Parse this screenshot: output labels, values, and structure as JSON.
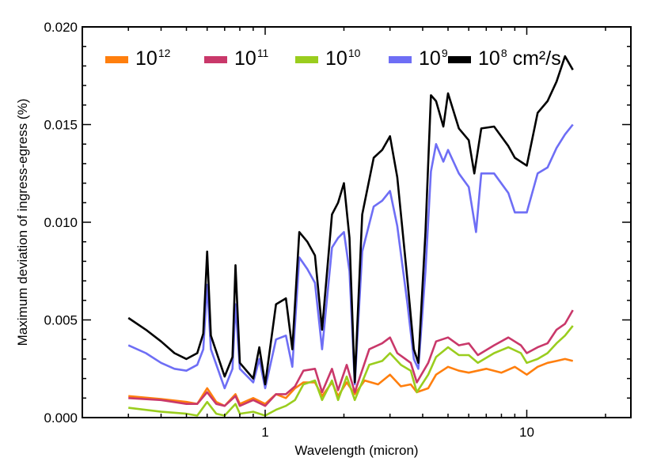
{
  "chart_data": {
    "type": "line",
    "xlabel": "Wavelength (micron)",
    "ylabel": "Maximum deviation of ingress-egress (%)",
    "xscale": "log",
    "xlim": [
      0.2,
      25
    ],
    "ylim": [
      0.0,
      0.02
    ],
    "x_ticks": [
      {
        "value": 1,
        "label": "1"
      },
      {
        "value": 10,
        "label": "10"
      }
    ],
    "y_ticks": [
      {
        "value": 0.0,
        "label": "0.000"
      },
      {
        "value": 0.005,
        "label": "0.005"
      },
      {
        "value": 0.01,
        "label": "0.010"
      },
      {
        "value": 0.015,
        "label": "0.015"
      },
      {
        "value": 0.02,
        "label": "0.020"
      }
    ],
    "legend_position": "top",
    "legend_unit": "cm²/s",
    "series": [
      {
        "name": "10^12",
        "base": "10",
        "exp": "12",
        "color": "#ff7f0e",
        "points": [
          [
            0.3,
            0.0011
          ],
          [
            0.4,
            0.00095
          ],
          [
            0.5,
            0.0008
          ],
          [
            0.55,
            0.0007
          ],
          [
            0.6,
            0.0015
          ],
          [
            0.65,
            0.0008
          ],
          [
            0.7,
            0.0006
          ],
          [
            0.77,
            0.0012
          ],
          [
            0.8,
            0.0007
          ],
          [
            0.9,
            0.001
          ],
          [
            1.0,
            0.0007
          ],
          [
            1.1,
            0.0012
          ],
          [
            1.2,
            0.001
          ],
          [
            1.3,
            0.0015
          ],
          [
            1.4,
            0.0018
          ],
          [
            1.55,
            0.0018
          ],
          [
            1.65,
            0.0011
          ],
          [
            1.8,
            0.0018
          ],
          [
            1.9,
            0.0011
          ],
          [
            2.05,
            0.0018
          ],
          [
            2.2,
            0.0012
          ],
          [
            2.4,
            0.0019
          ],
          [
            2.7,
            0.0017
          ],
          [
            3.0,
            0.0022
          ],
          [
            3.3,
            0.0016
          ],
          [
            3.6,
            0.0017
          ],
          [
            3.8,
            0.0013
          ],
          [
            4.2,
            0.0015
          ],
          [
            4.5,
            0.0022
          ],
          [
            5.0,
            0.0026
          ],
          [
            5.5,
            0.0024
          ],
          [
            6.0,
            0.0023
          ],
          [
            7.0,
            0.0025
          ],
          [
            8.0,
            0.0023
          ],
          [
            9.0,
            0.0026
          ],
          [
            10.0,
            0.0022
          ],
          [
            11.0,
            0.0026
          ],
          [
            12.0,
            0.0028
          ],
          [
            13.0,
            0.0029
          ],
          [
            14.0,
            0.003
          ],
          [
            15.0,
            0.0029
          ]
        ]
      },
      {
        "name": "10^11",
        "base": "10",
        "exp": "11",
        "color": "#c9386a",
        "points": [
          [
            0.3,
            0.001
          ],
          [
            0.4,
            0.0009
          ],
          [
            0.5,
            0.0007
          ],
          [
            0.55,
            0.0007
          ],
          [
            0.6,
            0.0013
          ],
          [
            0.65,
            0.0007
          ],
          [
            0.7,
            0.0006
          ],
          [
            0.77,
            0.0011
          ],
          [
            0.8,
            0.0006
          ],
          [
            0.9,
            0.0009
          ],
          [
            1.0,
            0.0006
          ],
          [
            1.1,
            0.0012
          ],
          [
            1.2,
            0.0012
          ],
          [
            1.3,
            0.0016
          ],
          [
            1.4,
            0.0024
          ],
          [
            1.55,
            0.0025
          ],
          [
            1.65,
            0.0013
          ],
          [
            1.8,
            0.0025
          ],
          [
            1.9,
            0.0014
          ],
          [
            2.05,
            0.0027
          ],
          [
            2.2,
            0.0013
          ],
          [
            2.5,
            0.0035
          ],
          [
            2.8,
            0.0038
          ],
          [
            3.0,
            0.0041
          ],
          [
            3.2,
            0.0033
          ],
          [
            3.6,
            0.0028
          ],
          [
            3.8,
            0.0018
          ],
          [
            4.2,
            0.0028
          ],
          [
            4.5,
            0.0039
          ],
          [
            5.0,
            0.0041
          ],
          [
            5.5,
            0.0037
          ],
          [
            6.0,
            0.0038
          ],
          [
            6.5,
            0.0032
          ],
          [
            7.5,
            0.0037
          ],
          [
            8.5,
            0.0041
          ],
          [
            9.5,
            0.0037
          ],
          [
            10.0,
            0.0033
          ],
          [
            11.0,
            0.0036
          ],
          [
            12.0,
            0.0038
          ],
          [
            13.0,
            0.0045
          ],
          [
            14.0,
            0.0048
          ],
          [
            15.0,
            0.0055
          ]
        ]
      },
      {
        "name": "10^10",
        "base": "10",
        "exp": "10",
        "color": "#9acd1e",
        "points": [
          [
            0.3,
            0.0005
          ],
          [
            0.4,
            0.0003
          ],
          [
            0.5,
            0.0002
          ],
          [
            0.55,
            0.0001
          ],
          [
            0.6,
            0.0008
          ],
          [
            0.65,
            0.0002
          ],
          [
            0.7,
            0.0001
          ],
          [
            0.77,
            0.0007
          ],
          [
            0.8,
            0.0002
          ],
          [
            0.9,
            0.0003
          ],
          [
            1.0,
            0.0001
          ],
          [
            1.1,
            0.0004
          ],
          [
            1.2,
            0.0006
          ],
          [
            1.3,
            0.0009
          ],
          [
            1.4,
            0.0017
          ],
          [
            1.55,
            0.0019
          ],
          [
            1.65,
            0.0009
          ],
          [
            1.8,
            0.0019
          ],
          [
            1.9,
            0.0009
          ],
          [
            2.05,
            0.0021
          ],
          [
            2.2,
            0.0009
          ],
          [
            2.5,
            0.0027
          ],
          [
            2.8,
            0.0029
          ],
          [
            3.0,
            0.0033
          ],
          [
            3.3,
            0.0027
          ],
          [
            3.6,
            0.0024
          ],
          [
            3.8,
            0.0013
          ],
          [
            4.2,
            0.0022
          ],
          [
            4.5,
            0.0031
          ],
          [
            5.0,
            0.0036
          ],
          [
            5.5,
            0.0032
          ],
          [
            6.0,
            0.0032
          ],
          [
            6.5,
            0.0028
          ],
          [
            7.5,
            0.0033
          ],
          [
            8.5,
            0.0036
          ],
          [
            9.5,
            0.0033
          ],
          [
            10.0,
            0.0028
          ],
          [
            11.0,
            0.003
          ],
          [
            12.0,
            0.0033
          ],
          [
            13.0,
            0.0038
          ],
          [
            14.0,
            0.0042
          ],
          [
            15.0,
            0.0047
          ]
        ]
      },
      {
        "name": "10^9",
        "base": "10",
        "exp": "9",
        "color": "#6e6ef5",
        "points": [
          [
            0.3,
            0.0037
          ],
          [
            0.35,
            0.0033
          ],
          [
            0.4,
            0.0028
          ],
          [
            0.45,
            0.0025
          ],
          [
            0.5,
            0.0024
          ],
          [
            0.55,
            0.0027
          ],
          [
            0.58,
            0.0035
          ],
          [
            0.6,
            0.0068
          ],
          [
            0.62,
            0.0035
          ],
          [
            0.7,
            0.0015
          ],
          [
            0.75,
            0.0025
          ],
          [
            0.77,
            0.0058
          ],
          [
            0.8,
            0.0025
          ],
          [
            0.9,
            0.0018
          ],
          [
            0.95,
            0.003
          ],
          [
            1.0,
            0.0015
          ],
          [
            1.1,
            0.004
          ],
          [
            1.2,
            0.0042
          ],
          [
            1.27,
            0.0026
          ],
          [
            1.35,
            0.0082
          ],
          [
            1.45,
            0.0076
          ],
          [
            1.55,
            0.0069
          ],
          [
            1.65,
            0.0035
          ],
          [
            1.8,
            0.0087
          ],
          [
            1.9,
            0.0092
          ],
          [
            2.0,
            0.0095
          ],
          [
            2.1,
            0.0075
          ],
          [
            2.2,
            0.0017
          ],
          [
            2.35,
            0.0085
          ],
          [
            2.6,
            0.0108
          ],
          [
            2.8,
            0.0111
          ],
          [
            3.0,
            0.0116
          ],
          [
            3.2,
            0.0098
          ],
          [
            3.5,
            0.0058
          ],
          [
            3.7,
            0.003
          ],
          [
            3.85,
            0.0025
          ],
          [
            4.1,
            0.0075
          ],
          [
            4.3,
            0.0126
          ],
          [
            4.5,
            0.014
          ],
          [
            4.8,
            0.0131
          ],
          [
            5.0,
            0.0137
          ],
          [
            5.5,
            0.0125
          ],
          [
            6.0,
            0.0118
          ],
          [
            6.4,
            0.0095
          ],
          [
            6.7,
            0.0125
          ],
          [
            7.5,
            0.0125
          ],
          [
            8.5,
            0.0115
          ],
          [
            9.0,
            0.0105
          ],
          [
            10.0,
            0.0105
          ],
          [
            11.0,
            0.0125
          ],
          [
            12.0,
            0.0128
          ],
          [
            13.0,
            0.0138
          ],
          [
            14.0,
            0.0145
          ],
          [
            15.0,
            0.015
          ]
        ]
      },
      {
        "name": "10^8",
        "base": "10",
        "exp": "8",
        "color": "#000000",
        "points": [
          [
            0.3,
            0.0051
          ],
          [
            0.35,
            0.0045
          ],
          [
            0.4,
            0.0039
          ],
          [
            0.45,
            0.0033
          ],
          [
            0.5,
            0.003
          ],
          [
            0.55,
            0.0033
          ],
          [
            0.58,
            0.0043
          ],
          [
            0.6,
            0.0085
          ],
          [
            0.62,
            0.0042
          ],
          [
            0.7,
            0.0021
          ],
          [
            0.75,
            0.0031
          ],
          [
            0.77,
            0.0078
          ],
          [
            0.8,
            0.0028
          ],
          [
            0.9,
            0.002
          ],
          [
            0.95,
            0.0036
          ],
          [
            1.0,
            0.0017
          ],
          [
            1.1,
            0.0058
          ],
          [
            1.2,
            0.0061
          ],
          [
            1.27,
            0.0035
          ],
          [
            1.35,
            0.0095
          ],
          [
            1.45,
            0.009
          ],
          [
            1.55,
            0.0083
          ],
          [
            1.65,
            0.0045
          ],
          [
            1.8,
            0.0104
          ],
          [
            1.9,
            0.011
          ],
          [
            2.0,
            0.012
          ],
          [
            2.1,
            0.0092
          ],
          [
            2.2,
            0.0018
          ],
          [
            2.35,
            0.0104
          ],
          [
            2.6,
            0.0133
          ],
          [
            2.8,
            0.0137
          ],
          [
            3.0,
            0.0144
          ],
          [
            3.2,
            0.0123
          ],
          [
            3.5,
            0.007
          ],
          [
            3.7,
            0.0035
          ],
          [
            3.85,
            0.0028
          ],
          [
            4.1,
            0.0095
          ],
          [
            4.3,
            0.0165
          ],
          [
            4.5,
            0.0162
          ],
          [
            4.8,
            0.0149
          ],
          [
            5.0,
            0.0166
          ],
          [
            5.5,
            0.0148
          ],
          [
            6.0,
            0.0142
          ],
          [
            6.3,
            0.0125
          ],
          [
            6.7,
            0.0148
          ],
          [
            7.5,
            0.0149
          ],
          [
            8.5,
            0.0139
          ],
          [
            9.0,
            0.0133
          ],
          [
            10.0,
            0.0129
          ],
          [
            11.0,
            0.0156
          ],
          [
            12.0,
            0.0162
          ],
          [
            13.0,
            0.0172
          ],
          [
            14.0,
            0.0185
          ],
          [
            15.0,
            0.0178
          ]
        ]
      }
    ]
  }
}
